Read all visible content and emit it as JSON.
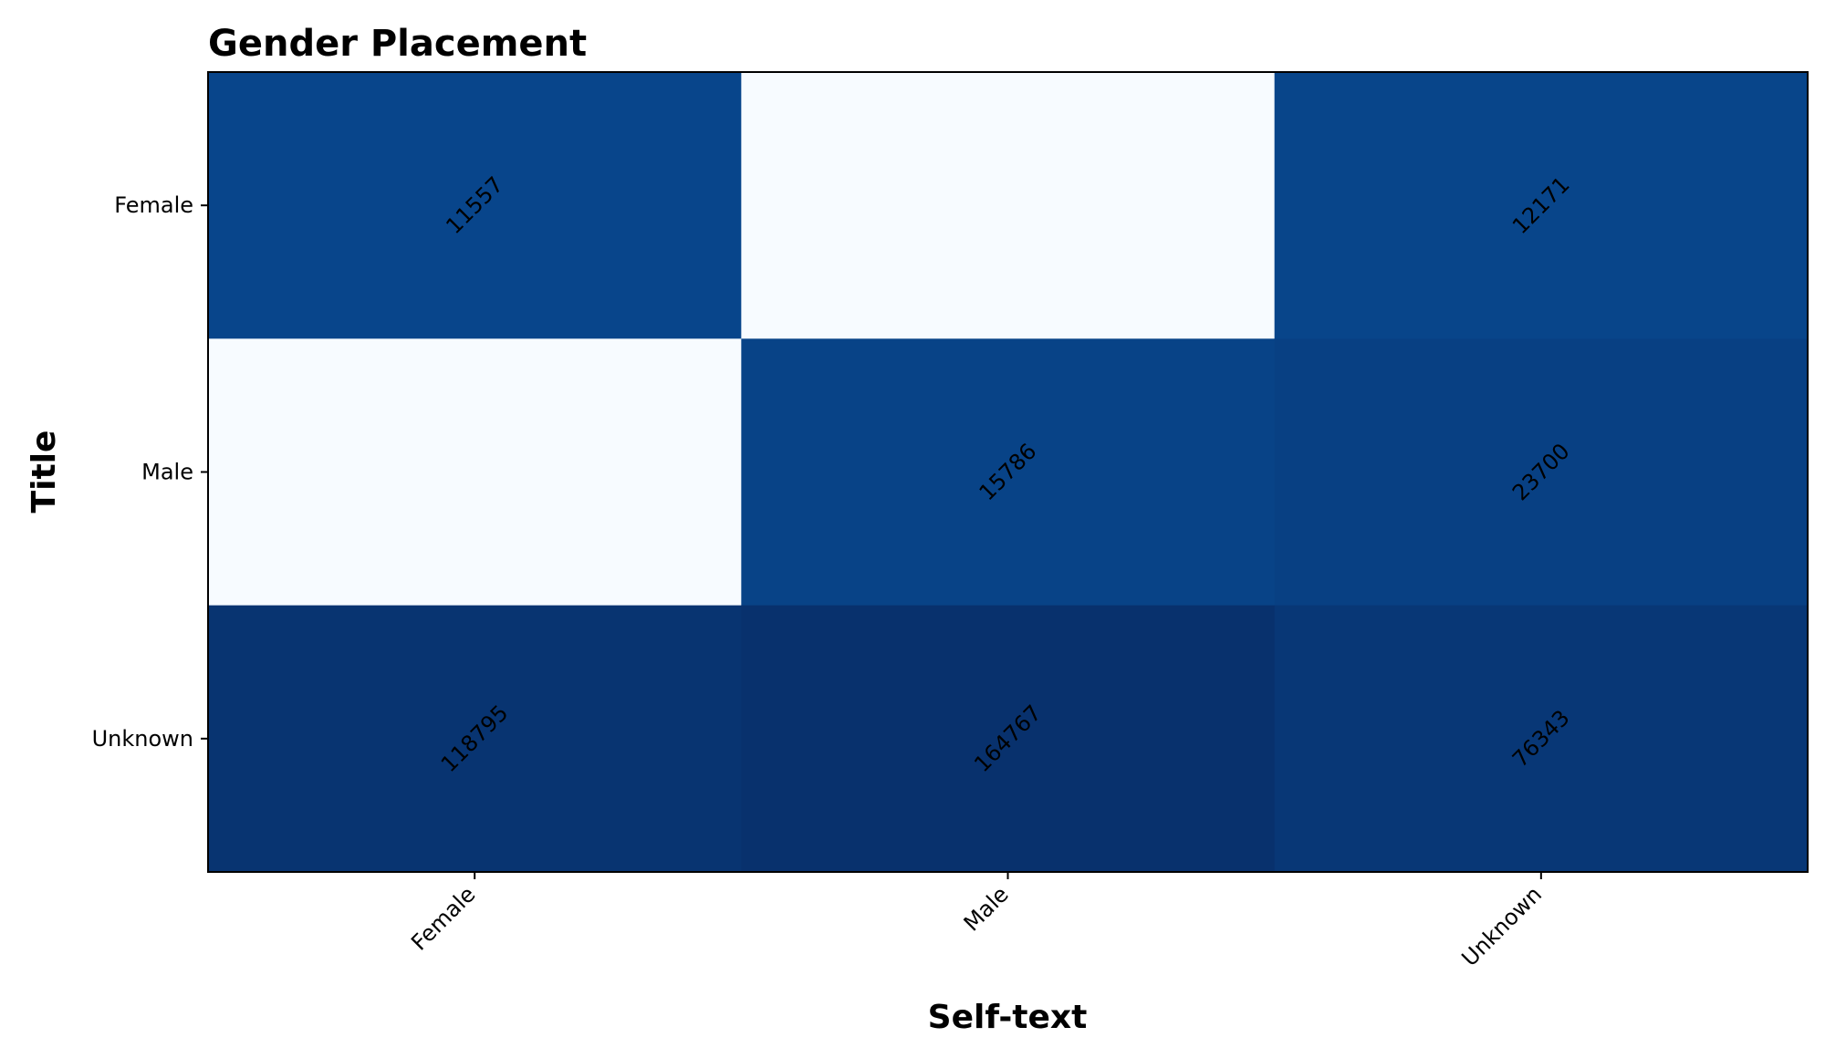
{
  "chart_data": {
    "type": "heatmap",
    "title": "Gender Placement",
    "xlabel": "Self-text",
    "ylabel": "Title",
    "x_categories": [
      "Female",
      "Male",
      "Unknown"
    ],
    "y_categories": [
      "Female",
      "Male",
      "Unknown"
    ],
    "values": [
      [
        11557,
        null,
        12171
      ],
      [
        null,
        15786,
        23700
      ],
      [
        118795,
        164767,
        76343
      ]
    ],
    "colormap": "Blues",
    "color_min": "#f7fbff",
    "color_max": "#08306b",
    "grid": false,
    "legend": false
  }
}
